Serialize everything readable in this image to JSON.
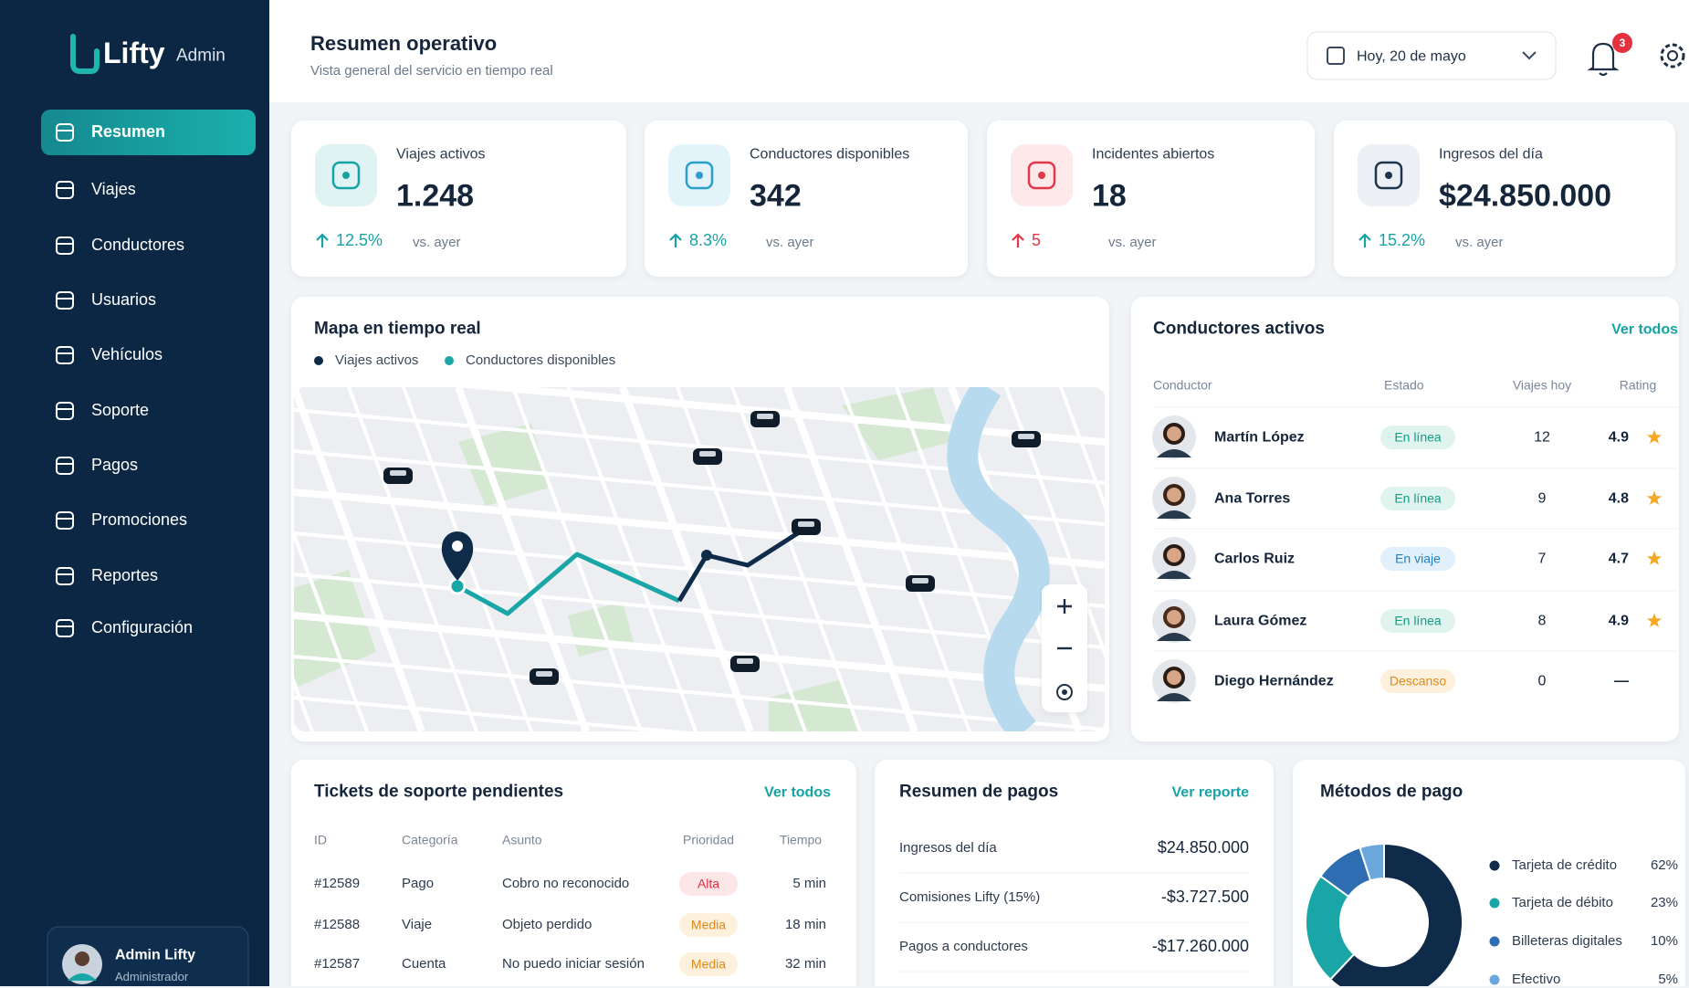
{
  "brand": {
    "name": "Lifty",
    "tag": "Admin"
  },
  "nav": [
    "Resumen",
    "Viajes",
    "Conductores",
    "Usuarios",
    "Vehículos",
    "Soporte",
    "Pagos",
    "Promociones",
    "Reportes",
    "Configuración"
  ],
  "user": {
    "name": "Admin Lifty",
    "role": "Administrador"
  },
  "header": {
    "title": "Resumen operativo",
    "subtitle": "Vista general del servicio en tiempo real",
    "date": "Hoy, 20 de mayo",
    "notifications": "3"
  },
  "kpis": [
    {
      "label": "Viajes activos",
      "value": "1.248",
      "change": "12.5%",
      "compare": "vs. ayer"
    },
    {
      "label": "Conductores disponibles",
      "value": "342",
      "change": "8.3%",
      "compare": "vs. ayer"
    },
    {
      "label": "Incidentes abiertos",
      "value": "18",
      "change": "5",
      "compare": "vs. ayer"
    },
    {
      "label": "Ingresos del día",
      "value": "$24.850.000",
      "change": "15.2%",
      "compare": "vs. ayer"
    }
  ],
  "map": {
    "title": "Mapa en tiempo real",
    "legend": [
      "Viajes activos",
      "Conductores disponibles"
    ]
  },
  "drivers": {
    "title": "Conductores activos",
    "link": "Ver todos",
    "columns": [
      "Conductor",
      "Estado",
      "Viajes hoy",
      "Rating"
    ],
    "rows": [
      [
        "Martín López",
        "En línea",
        "12",
        "4.9"
      ],
      [
        "Ana Torres",
        "En línea",
        "9",
        "4.8"
      ],
      [
        "Carlos Ruiz",
        "En viaje",
        "7",
        "4.7"
      ],
      [
        "Laura Gómez",
        "En línea",
        "8",
        "4.9"
      ],
      [
        "Diego Hernández",
        "Descanso",
        "0",
        "—"
      ]
    ]
  },
  "tickets": {
    "title": "Tickets de soporte pendientes",
    "link": "Ver todos",
    "columns": [
      "ID",
      "Categoría",
      "Asunto",
      "Prioridad",
      "Tiempo"
    ],
    "rows": [
      [
        "#12589",
        "Pago",
        "Cobro no reconocido",
        "Alta",
        "5 min"
      ],
      [
        "#12588",
        "Viaje",
        "Objeto perdido",
        "Media",
        "18 min"
      ],
      [
        "#12587",
        "Cuenta",
        "No puedo iniciar sesión",
        "Media",
        "32 min"
      ]
    ]
  },
  "payments": {
    "title": "Resumen de pagos",
    "link": "Ver reporte",
    "rows": [
      [
        "Ingresos del día",
        "$24.850.000"
      ],
      [
        "Comisiones Lifty (15%)",
        "-$3.727.500"
      ],
      [
        "Pagos a conductores",
        "-$17.260.000"
      ]
    ]
  },
  "payment_methods": {
    "type": "pie",
    "title": "Métodos de pago",
    "categories": [
      "Tarjeta de crédito",
      "Tarjeta de débito",
      "Billeteras digitales",
      "Efectivo"
    ],
    "values": [
      62,
      23,
      10,
      5
    ],
    "value_labels": [
      "62%",
      "23%",
      "10%",
      "5%"
    ],
    "colors": [
      "#0f2b4a",
      "#1aa6a6",
      "#2f6db3",
      "#6aa7dc"
    ]
  }
}
